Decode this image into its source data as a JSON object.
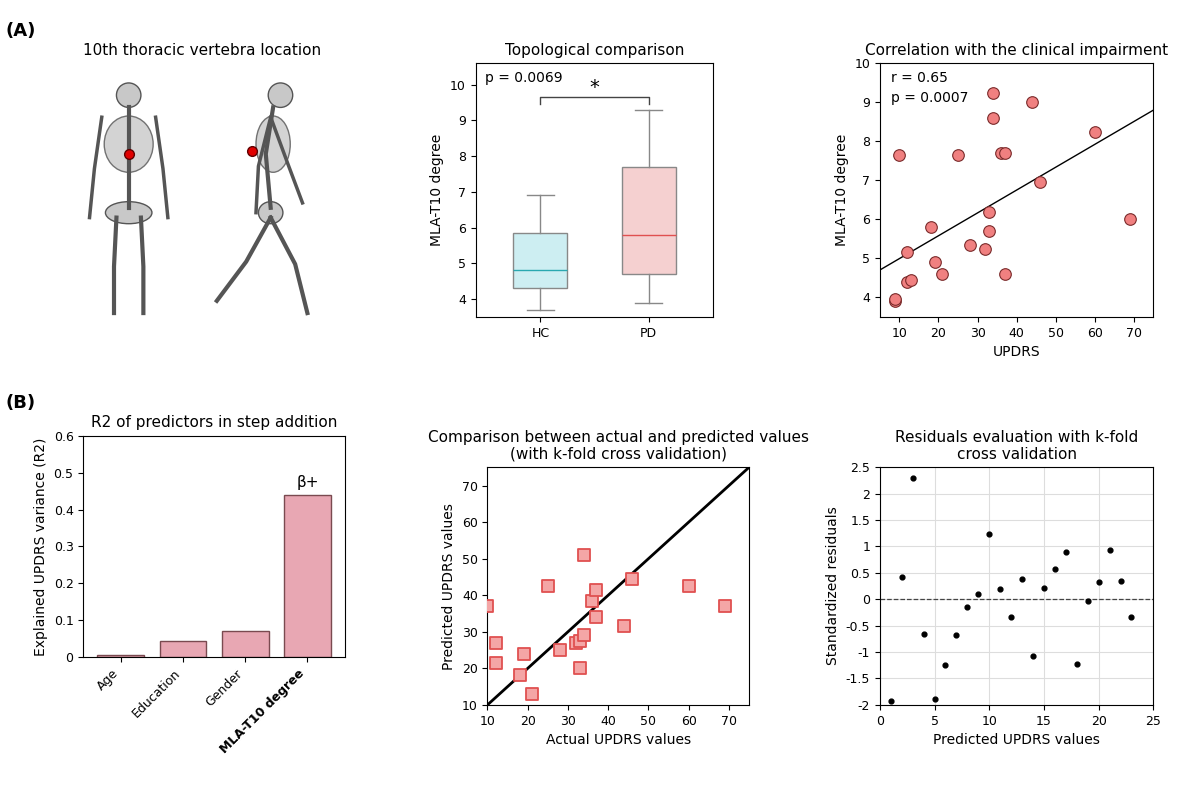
{
  "chart_data": [
    {
      "type": "illustration",
      "panel_label": "(A)",
      "title": "10th thoracic vertebra location",
      "color": "#e00000"
    },
    {
      "type": "box",
      "title": "Topological comparison",
      "ylabel": "MLA-T10 degree",
      "categories": [
        "HC",
        "PD"
      ],
      "boxes": [
        {
          "whislo": 3.7,
          "q1": 4.3,
          "median": 4.8,
          "q3": 5.85,
          "whishi": 6.9
        },
        {
          "whislo": 3.9,
          "q1": 4.7,
          "median": 5.8,
          "q3": 7.7,
          "whishi": 9.3
        }
      ],
      "colors": [
        "#cdeef2",
        "#f5d0d0"
      ],
      "ylim": [
        3.5,
        10.6
      ],
      "yticks": [
        4,
        5,
        6,
        7,
        8,
        9,
        10
      ],
      "annotations": [
        "p = 0.0069",
        "*"
      ]
    },
    {
      "type": "scatter",
      "title": "Correlation with the clinical impairment",
      "xlabel": "UPDRS",
      "ylabel": "MLA-T10 degree",
      "x": [
        9,
        9,
        10,
        12,
        12,
        13,
        18,
        19,
        21,
        25,
        28,
        32,
        33,
        33,
        34,
        34,
        36,
        37,
        37,
        44,
        46,
        60,
        69
      ],
      "values": [
        3.9,
        3.95,
        7.65,
        5.15,
        4.4,
        4.45,
        5.8,
        4.9,
        4.6,
        7.65,
        5.35,
        5.25,
        6.2,
        5.7,
        8.6,
        9.25,
        7.7,
        7.7,
        4.6,
        9.0,
        6.95,
        8.25,
        6.0
      ],
      "color": "#f08080",
      "marker": "circle",
      "fit_line": {
        "x": [
          5,
          75
        ],
        "y": [
          4.7,
          8.8
        ]
      },
      "xlim": [
        5,
        75
      ],
      "xticks": [
        10,
        20,
        30,
        40,
        50,
        60,
        70
      ],
      "ylim": [
        3.5,
        10
      ],
      "yticks": [
        4,
        5,
        6,
        7,
        8,
        9,
        10
      ],
      "annotations": [
        "r = 0.65",
        "p = 0.0007"
      ]
    },
    {
      "type": "bar",
      "panel_label": "(B)",
      "title": "R2 of predictors in step addition",
      "ylabel": "Explained UPDRS variance (R2)",
      "categories": [
        "Age",
        "Education",
        "Gender",
        "MLA-T10 degree"
      ],
      "values": [
        0.007,
        0.045,
        0.072,
        0.438
      ],
      "color": "#e8a7b3",
      "ylim": [
        0,
        0.6
      ],
      "yticks": [
        0,
        0.1,
        0.2,
        0.3,
        0.4,
        0.5,
        0.6
      ],
      "annotations": [
        {
          "category": "MLA-T10 degree",
          "text": "β+"
        }
      ]
    },
    {
      "type": "scatter",
      "title": "Comparison between actual and predicted values\n(with k-fold cross validation)",
      "xlabel": "Actual UPDRS values",
      "ylabel": "Predicted UPDRS values",
      "x": [
        10,
        12,
        12,
        18,
        19,
        21,
        25,
        28,
        32,
        33,
        33,
        34,
        34,
        36,
        37,
        37,
        44,
        46,
        60,
        69
      ],
      "values": [
        37,
        27,
        21.5,
        18.3,
        24,
        13,
        42.5,
        25,
        27,
        27.5,
        20,
        29,
        51,
        38.5,
        41.5,
        34,
        31.5,
        44.5,
        42.5,
        37
      ],
      "color": "#f4a6a6",
      "marker": "square",
      "reference_line": {
        "x": [
          10,
          75
        ],
        "y": [
          10,
          75
        ]
      },
      "xlim": [
        10,
        75
      ],
      "xticks": [
        10,
        20,
        30,
        40,
        50,
        60,
        70
      ],
      "ylim": [
        10,
        75
      ],
      "yticks": [
        10,
        20,
        30,
        40,
        50,
        60,
        70
      ]
    },
    {
      "type": "scatter",
      "title": "Residuals evaluation with k-fold\ncross validation",
      "xlabel": "Predicted UPDRS values",
      "ylabel": "Standardized residuals",
      "x": [
        1,
        2,
        3,
        4,
        5,
        6,
        7,
        8,
        9,
        10,
        11,
        12,
        13,
        14,
        15,
        16,
        17,
        18,
        19,
        20,
        21,
        22,
        23
      ],
      "values": [
        -1.92,
        0.43,
        2.3,
        -0.65,
        -1.88,
        -1.25,
        -0.67,
        -0.15,
        0.1,
        1.23,
        0.2,
        -0.33,
        0.38,
        -1.07,
        0.22,
        0.58,
        0.9,
        -1.22,
        -0.03,
        0.33,
        0.93,
        0.35,
        -0.33
      ],
      "color": "#000000",
      "marker": "dot",
      "grid": true,
      "reference_line": {
        "y": 0
      },
      "xlim": [
        0,
        25
      ],
      "xticks": [
        0,
        5,
        10,
        15,
        20,
        25
      ],
      "ylim": [
        -2,
        2.5
      ],
      "yticks": [
        -2,
        -1.5,
        -1,
        -0.5,
        0,
        0.5,
        1,
        1.5,
        2,
        2.5
      ]
    }
  ]
}
